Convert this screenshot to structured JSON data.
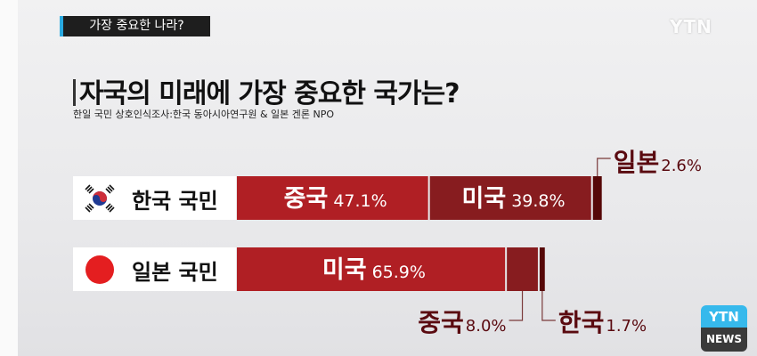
{
  "topic_tag": "가장 중요한 나라?",
  "broadcaster": "YTN",
  "logo": {
    "top": "YTN",
    "bottom": "NEWS"
  },
  "title": "자국의 미래에 가장 중요한 국가는?",
  "source": "한일 국민 상호인식조사:한국 동아시아연구원 & 일본 겐론 NPO",
  "chart_data": {
    "type": "bar",
    "orientation": "horizontal-stacked",
    "title": "자국의 미래에 가장 중요한 국가는?",
    "categories": [
      "한국 국민",
      "일본 국민"
    ],
    "rows": [
      {
        "label": "한국 국민",
        "flag": "korea-flag-icon",
        "segments": [
          {
            "name": "중국",
            "value": 47.1,
            "label": "47.1%",
            "color": "#b01f24"
          },
          {
            "name": "미국",
            "value": 39.8,
            "label": "39.8%",
            "color": "#871c1f"
          },
          {
            "name": "일본",
            "value": 2.6,
            "label": "2.6%",
            "color": "#560808"
          }
        ]
      },
      {
        "label": "일본 국민",
        "flag": "japan-flag-icon",
        "segments": [
          {
            "name": "미국",
            "value": 65.9,
            "label": "65.9%",
            "color": "#b01f24"
          },
          {
            "name": "중국",
            "value": 8.0,
            "label": "8.0%",
            "color": "#871c1f"
          },
          {
            "name": "한국",
            "value": 1.7,
            "label": "1.7%",
            "color": "#560808"
          }
        ]
      }
    ],
    "xlim": [
      0,
      100
    ],
    "grid": false,
    "legend": "none"
  }
}
